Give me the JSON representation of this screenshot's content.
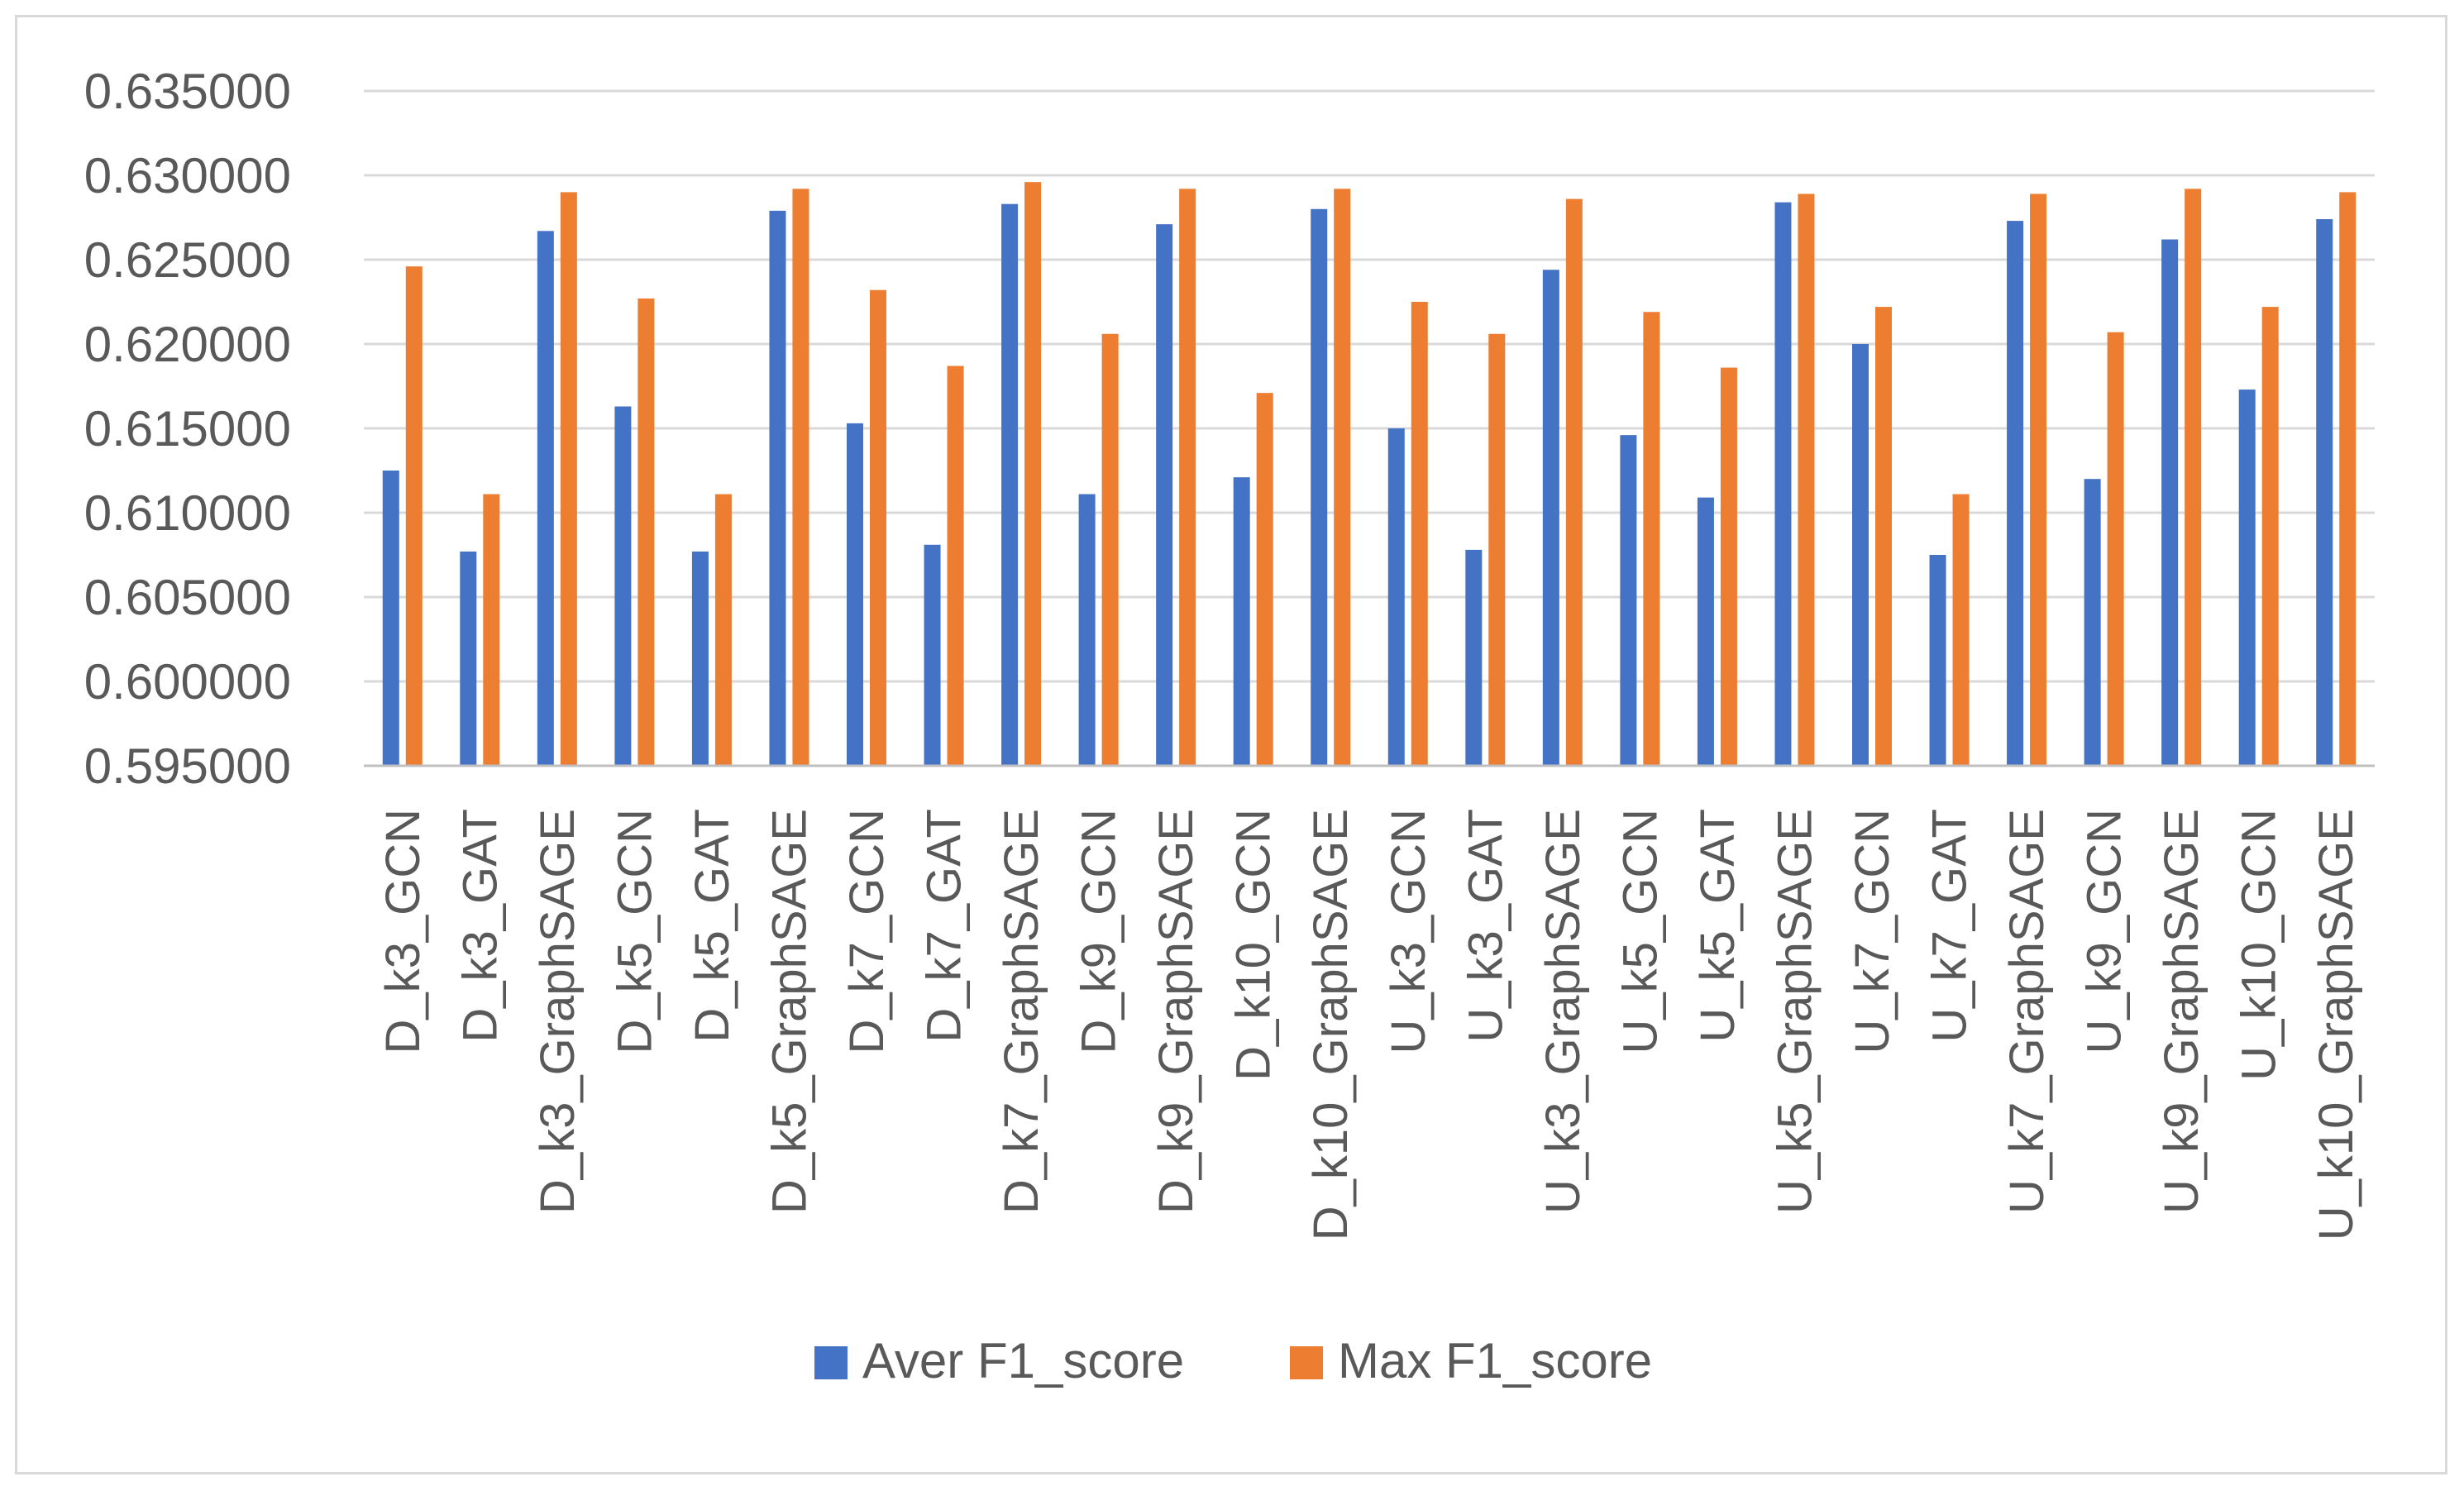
{
  "chart_data": {
    "type": "bar",
    "title": "",
    "xlabel": "",
    "ylabel": "",
    "ylim": [
      0.595,
      0.635
    ],
    "ytick_step": 0.005,
    "ytick_decimals": 6,
    "grid": true,
    "legend_position": "bottom",
    "categories": [
      "D_k3_GCN",
      "D_k3_GAT",
      "D_k3_GraphSAGE",
      "D_k5_GCN",
      "D_k5_GAT",
      "D_k5_GraphSAGE",
      "D_k7_GCN",
      "D_k7_GAT",
      "D_k7_GraphSAGE",
      "D_k9_GCN",
      "D_k9_GraphSAGE",
      "D_k10_GCN",
      "D_k10_GraphSAGE",
      "U_k3_GCN",
      "U_k3_GAT",
      "U_k3_GraphSAGE",
      "U_k5_GCN",
      "U_k5_GAT",
      "U_k5_GraphSAGE",
      "U_k7_GCN",
      "U_k7_GAT",
      "U_k7_GraphSAGE",
      "U_k9_GCN",
      "U_k9_GraphSAGE",
      "U_k10_GCN",
      "U_k10_GraphSAGE"
    ],
    "series": [
      {
        "name": "Aver F1_score",
        "color": "#4472c4",
        "values": [
          0.6125,
          0.6077,
          0.6267,
          0.6163,
          0.6077,
          0.6279,
          0.6153,
          0.6081,
          0.6283,
          0.6111,
          0.6271,
          0.6121,
          0.628,
          0.615,
          0.6078,
          0.6244,
          0.6146,
          0.6109,
          0.6284,
          0.62,
          0.6075,
          0.6273,
          0.612,
          0.6262,
          0.6173,
          0.6274
        ]
      },
      {
        "name": "Max F1_score",
        "color": "#ed7d31",
        "values": [
          0.6246,
          0.6111,
          0.629,
          0.6227,
          0.6111,
          0.6292,
          0.6232,
          0.6187,
          0.6296,
          0.6206,
          0.6292,
          0.6171,
          0.6292,
          0.6225,
          0.6206,
          0.6286,
          0.6219,
          0.6186,
          0.6289,
          0.6222,
          0.6111,
          0.6289,
          0.6207,
          0.6292,
          0.6222,
          0.629
        ]
      }
    ]
  }
}
